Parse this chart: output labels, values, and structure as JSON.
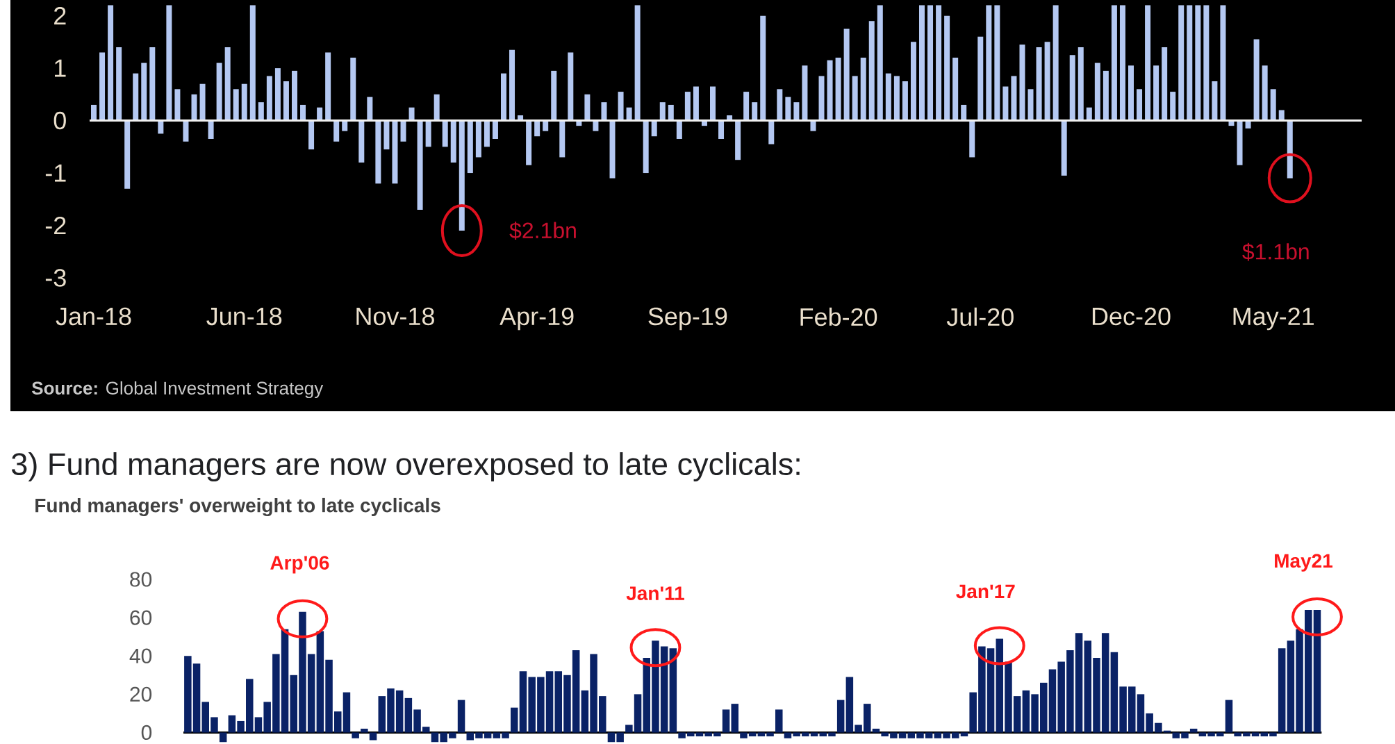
{
  "chart_data": [
    {
      "type": "bar",
      "categories": [
        "Jan-18",
        null,
        null,
        null,
        null,
        null,
        null,
        null,
        null,
        null,
        null,
        null,
        null,
        null,
        null,
        null,
        null,
        null,
        "Jun-18",
        null,
        null,
        null,
        null,
        null,
        null,
        null,
        null,
        null,
        null,
        null,
        null,
        null,
        null,
        null,
        null,
        null,
        "Nov-18",
        null,
        null,
        null,
        null,
        null,
        null,
        null,
        null,
        null,
        null,
        null,
        null,
        null,
        null,
        null,
        null,
        "Apr-19",
        null,
        null,
        null,
        null,
        null,
        null,
        null,
        null,
        null,
        null,
        null,
        null,
        null,
        null,
        null,
        null,
        null,
        "Sep-19",
        null,
        null,
        null,
        null,
        null,
        null,
        null,
        null,
        null,
        null,
        null,
        null,
        null,
        null,
        null,
        null,
        null,
        "Feb-20",
        null,
        null,
        null,
        null,
        null,
        null,
        null,
        null,
        null,
        null,
        null,
        null,
        null,
        null,
        null,
        null,
        "Jul-20",
        null,
        null,
        null,
        null,
        null,
        null,
        null,
        null,
        null,
        null,
        null,
        null,
        null,
        null,
        null,
        null,
        null,
        "Dec-20",
        null,
        null,
        null,
        null,
        null,
        null,
        null,
        null,
        null,
        null,
        null,
        null,
        null,
        null,
        null,
        null,
        "May-21",
        null,
        null
      ],
      "values": [
        0.3,
        1.3,
        2.2,
        1.4,
        -1.3,
        0.9,
        1.1,
        1.4,
        -0.25,
        2.2,
        0.6,
        -0.4,
        0.5,
        0.7,
        -0.35,
        1.1,
        1.4,
        0.6,
        0.7,
        2.2,
        0.35,
        0.85,
        1.0,
        0.75,
        0.95,
        0.3,
        -0.55,
        0.25,
        1.3,
        -0.4,
        -0.2,
        1.2,
        -0.8,
        0.45,
        -1.2,
        -0.55,
        -1.2,
        -0.4,
        0.25,
        -1.7,
        -0.5,
        0.5,
        -0.5,
        -0.8,
        -2.1,
        -1.0,
        -0.7,
        -0.5,
        -0.35,
        0.9,
        1.35,
        0.1,
        -0.85,
        -0.3,
        -0.2,
        0.95,
        -0.7,
        1.3,
        -0.1,
        0.5,
        -0.2,
        0.35,
        -1.1,
        0.55,
        0.25,
        2.2,
        -1.0,
        -0.3,
        0.35,
        0.3,
        -0.35,
        0.55,
        0.65,
        -0.1,
        0.65,
        -0.35,
        0.1,
        -0.75,
        0.55,
        0.35,
        2.0,
        -0.45,
        0.6,
        0.45,
        0.35,
        1.05,
        -0.2,
        0.85,
        1.15,
        1.2,
        1.75,
        0.85,
        1.2,
        1.9,
        2.2,
        0.9,
        0.85,
        0.75,
        1.5,
        2.2,
        2.2,
        2.2,
        2.0,
        1.2,
        0.3,
        -0.7,
        1.6,
        2.2,
        2.2,
        0.65,
        0.85,
        1.45,
        0.6,
        1.4,
        1.5,
        2.2,
        -1.05,
        1.25,
        1.4,
        0.25,
        1.1,
        0.95,
        2.2,
        2.2,
        1.05,
        0.6,
        2.2,
        1.05,
        1.4,
        0.55,
        2.2,
        2.2,
        2.2,
        2.2,
        0.75,
        2.2,
        -0.1,
        -0.85,
        -0.15,
        1.55,
        1.05,
        0.6,
        0.2,
        -1.1
      ],
      "color": "#b4c8f2",
      "ylim": [
        -3,
        2.3
      ],
      "yticks": [
        -3,
        -2,
        -1,
        0,
        1,
        2
      ],
      "annotations": [
        "$2.1bn",
        "$1.1bn",
        "**Source:** Global Investment Strategy"
      ]
    },
    {
      "type": "bar",
      "title": "3) Fund managers are now overexposed to late cyclicals:",
      "subtitle": "Fund managers' overweight to late cyclicals",
      "categories": [
        null,
        null,
        null,
        null,
        null,
        null,
        null,
        null,
        null,
        null,
        null,
        null,
        null,
        null,
        null,
        null,
        null,
        null,
        null,
        null,
        null,
        null,
        null,
        null,
        null,
        null,
        null,
        null,
        null,
        null,
        null,
        null,
        null,
        null,
        null,
        null,
        null,
        null,
        null,
        null,
        null,
        null,
        null,
        null,
        null,
        null,
        null,
        null,
        null,
        null,
        null,
        null,
        null,
        null,
        null,
        null,
        null,
        null,
        null,
        null,
        null,
        null,
        null,
        null,
        null,
        null,
        null,
        null,
        null,
        null,
        null,
        null,
        null,
        null,
        null,
        null,
        null,
        null,
        null,
        null,
        null,
        null,
        null,
        null,
        null,
        null,
        null,
        null,
        null,
        null,
        null,
        null,
        null,
        null,
        null,
        null,
        null,
        null,
        null,
        null,
        null,
        null,
        null,
        null,
        null,
        null,
        null,
        null,
        null,
        null,
        null,
        null,
        null,
        null,
        null,
        null,
        null,
        null,
        null,
        null,
        null,
        null,
        null,
        null,
        null,
        null,
        null,
        null,
        null
      ],
      "values": [
        40,
        36,
        16,
        8,
        -5,
        9,
        6,
        28,
        8,
        16,
        41,
        54,
        30,
        63,
        41,
        53,
        38,
        11,
        21,
        -3,
        2,
        -4,
        19,
        23,
        22,
        18,
        12,
        3,
        -5,
        -5,
        -3,
        17,
        -4,
        -3,
        -3,
        -3,
        -3,
        13,
        32,
        29,
        29,
        32,
        32,
        30,
        43,
        22,
        41,
        19,
        -5,
        -5,
        4,
        20,
        39,
        48,
        45,
        44,
        -3,
        -2,
        -2,
        -2,
        -2,
        12,
        15,
        -3,
        -2,
        -2,
        -2,
        12,
        -3,
        -2,
        -2,
        -2,
        -2,
        -2,
        17,
        29,
        4,
        15,
        2,
        -2,
        -3,
        -3,
        -3,
        -3,
        -3,
        -3,
        -3,
        -3,
        -2,
        21,
        45,
        44,
        49,
        37,
        19,
        22,
        20,
        26,
        33,
        37,
        43,
        52,
        48,
        39,
        52,
        42,
        24,
        24,
        20,
        10,
        5,
        1,
        -3,
        -3,
        2,
        -2,
        -2,
        -2,
        17,
        -2,
        -2,
        -2,
        -2,
        -2,
        44,
        48,
        54,
        64,
        64
      ],
      "color": "#0a2266",
      "ylim": [
        -6,
        80
      ],
      "yticks": [
        0,
        20,
        40,
        60,
        80
      ],
      "tick_labels": "y",
      "annotations": [
        "Arp'06",
        "Jan'11",
        "Jan'17",
        "May21"
      ]
    }
  ]
}
